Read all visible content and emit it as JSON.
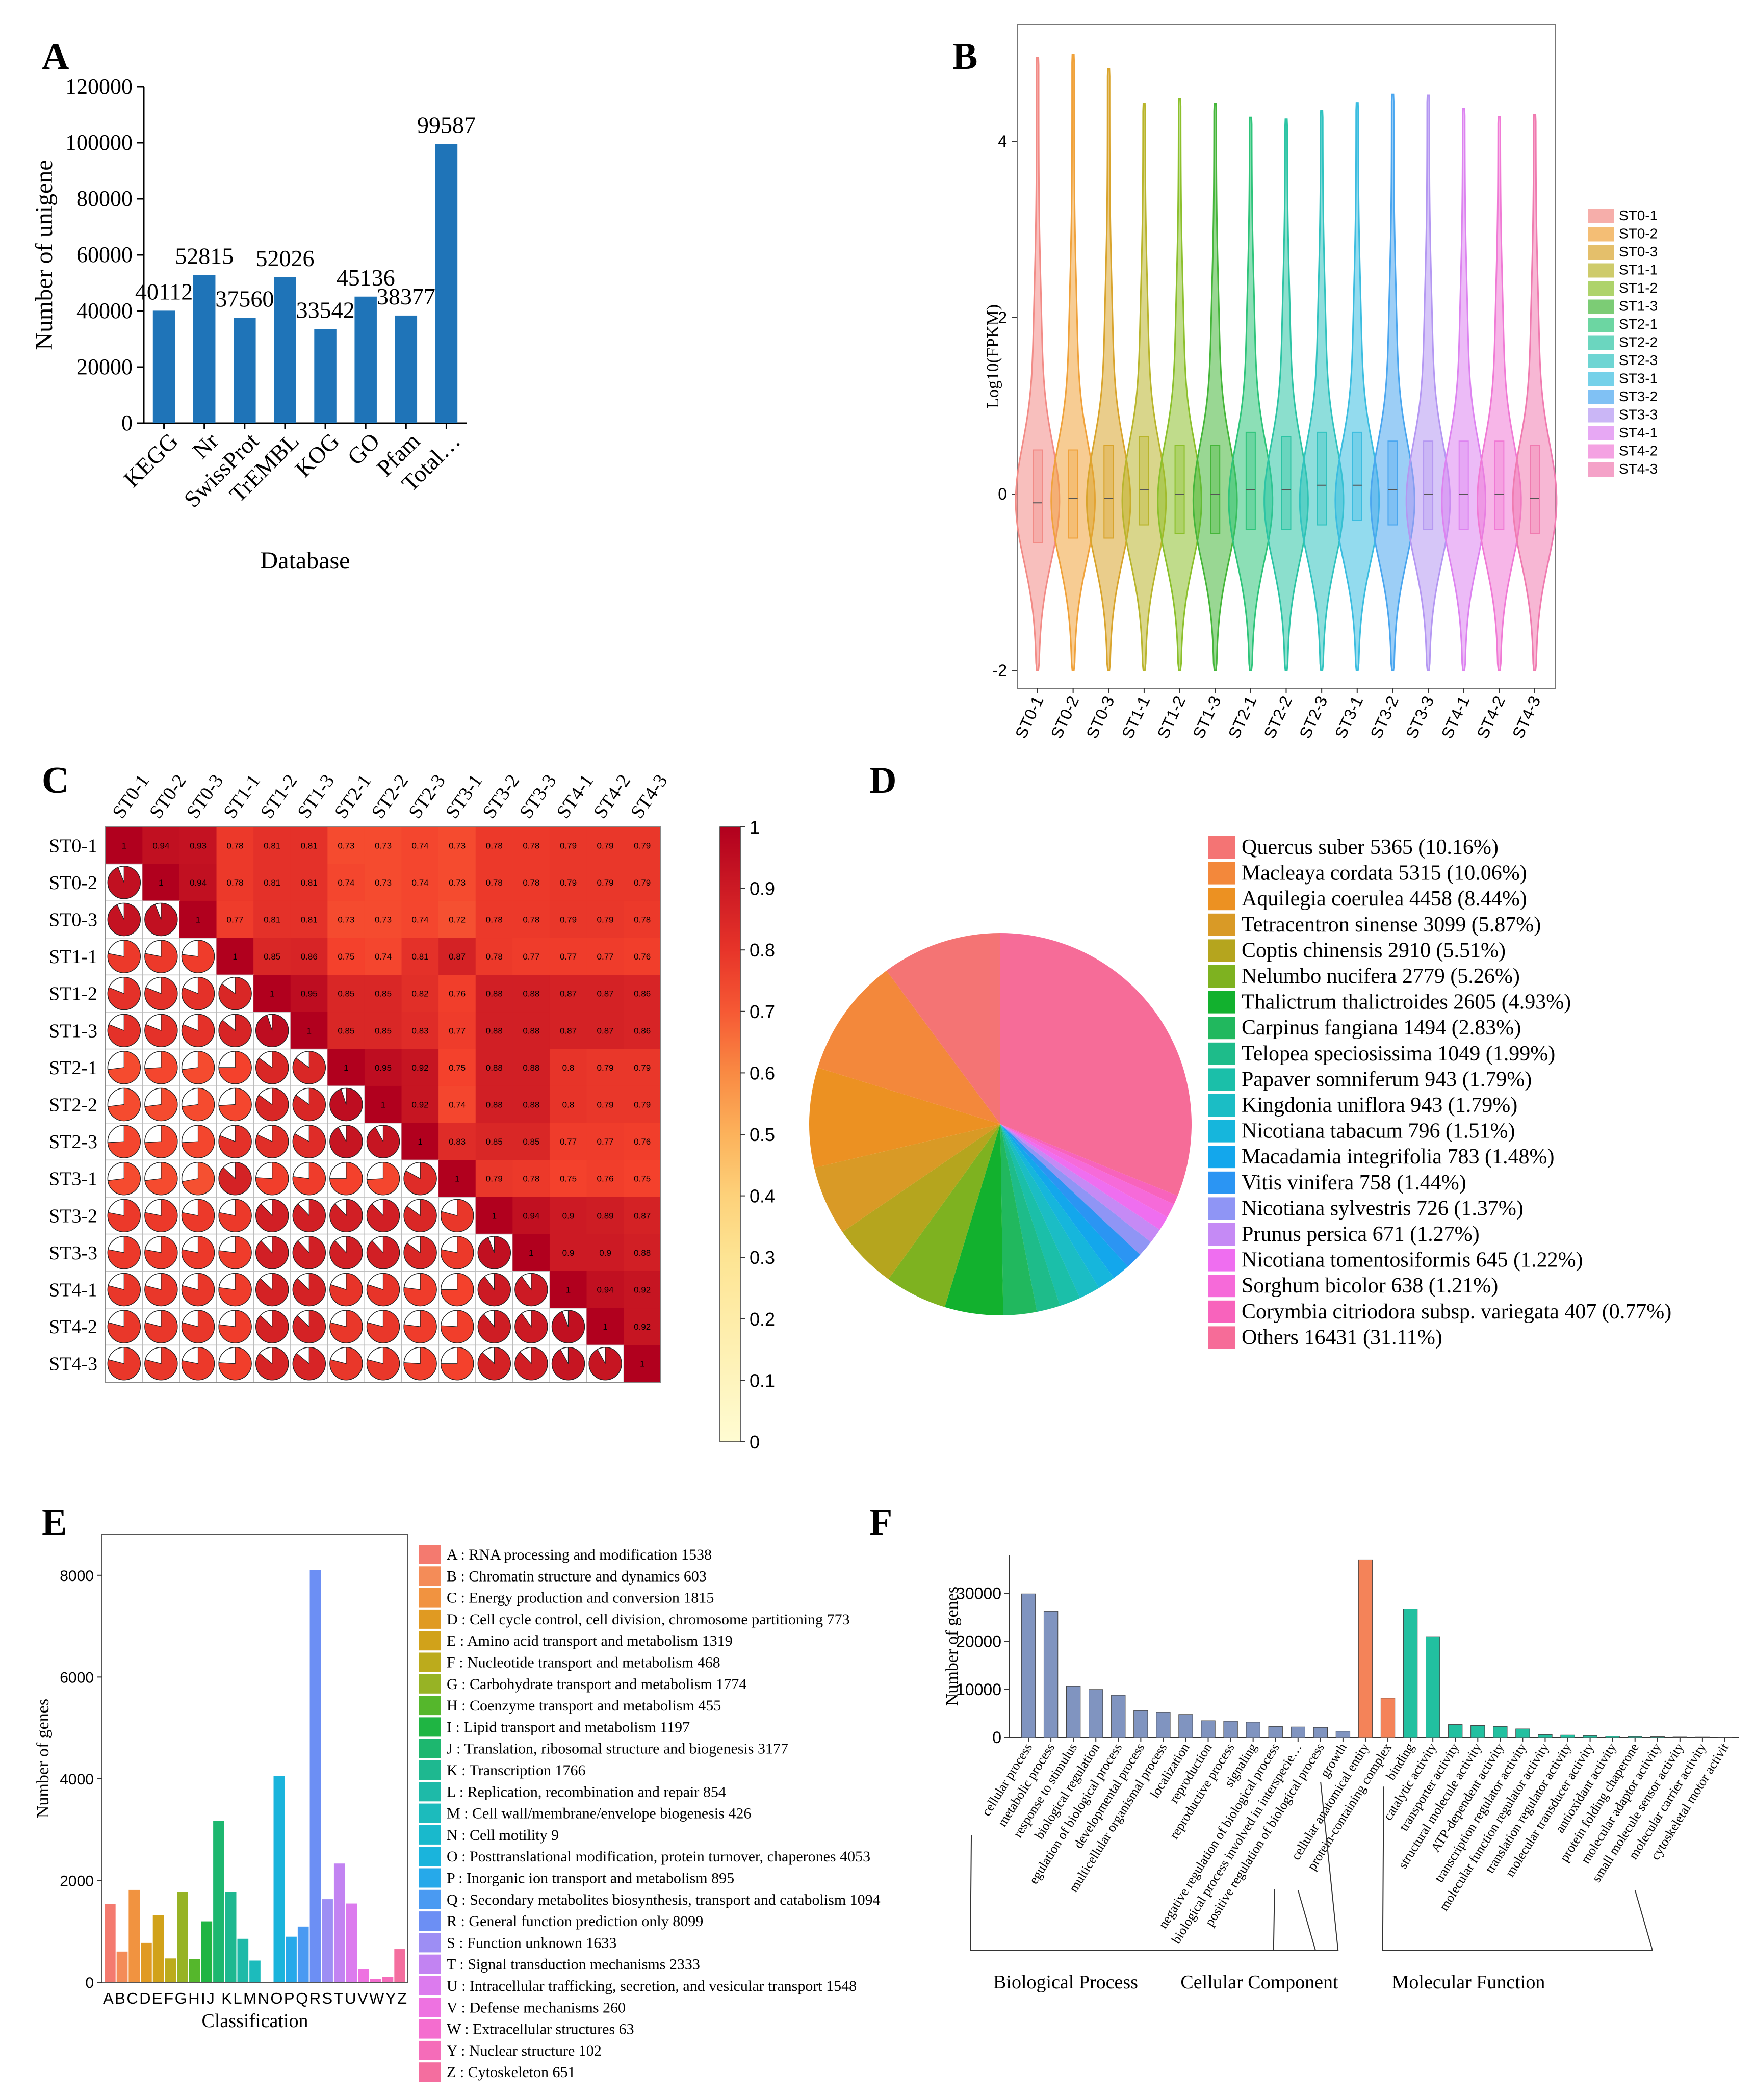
{
  "panels": {
    "A": "A",
    "B": "B",
    "C": "C",
    "D": "D",
    "E": "E",
    "F": "F"
  },
  "chart_data": [
    {
      "panel": "A",
      "type": "bar",
      "title": "",
      "xlabel": "Database",
      "ylabel": "Number of unigene",
      "ylim": [
        0,
        120000
      ],
      "yticks": [
        "0",
        "20000",
        "40000",
        "60000",
        "80000",
        "100000",
        "120000"
      ],
      "categories": [
        "KEGG",
        "Nr",
        "SwissProt",
        "TrEMBL",
        "KOG",
        "GO",
        "Pfam",
        "Total…"
      ],
      "values": [
        40112,
        52815,
        37560,
        52026,
        33542,
        45136,
        38377,
        99587
      ],
      "value_labels": [
        "40112",
        "52815",
        "37560",
        "52026",
        "33542",
        "45136",
        "38377",
        "99587"
      ],
      "color": "#1f74b8",
      "grid": false
    },
    {
      "panel": "B",
      "type": "violin",
      "ylabel": "Log10(FPKM)",
      "ylim": [
        -2,
        5
      ],
      "yticks": [
        "-2",
        "0",
        "2",
        "4"
      ],
      "categories": [
        "ST0-1",
        "ST0-2",
        "ST0-3",
        "ST1-1",
        "ST1-2",
        "ST1-3",
        "ST2-1",
        "ST2-2",
        "ST2-3",
        "ST3-1",
        "ST3-2",
        "ST3-3",
        "ST4-1",
        "ST4-2",
        "ST4-3"
      ],
      "max": [
        4.95,
        4.98,
        4.82,
        4.42,
        4.48,
        4.42,
        4.27,
        4.25,
        4.35,
        4.43,
        4.53,
        4.52,
        4.37,
        4.28,
        4.3
      ],
      "min": [
        -2,
        -2,
        -2,
        -2,
        -2,
        -2,
        -2,
        -2,
        -2,
        -2,
        -2,
        -2,
        -2,
        -2,
        -2
      ],
      "q1": [
        -0.55,
        -0.5,
        -0.5,
        -0.35,
        -0.45,
        -0.45,
        -0.4,
        -0.4,
        -0.35,
        -0.3,
        -0.35,
        -0.4,
        -0.4,
        -0.4,
        -0.45
      ],
      "median": [
        -0.1,
        -0.05,
        -0.05,
        0.05,
        0.0,
        0.0,
        0.05,
        0.05,
        0.1,
        0.1,
        0.05,
        0.0,
        0.0,
        0.0,
        -0.05
      ],
      "q3": [
        0.5,
        0.5,
        0.55,
        0.65,
        0.55,
        0.55,
        0.7,
        0.65,
        0.7,
        0.7,
        0.6,
        0.6,
        0.6,
        0.6,
        0.55
      ],
      "colors": [
        "#f28b86",
        "#f0a23b",
        "#d9a42c",
        "#b9b52c",
        "#8cc02c",
        "#45b63a",
        "#2ec47a",
        "#2cc4a4",
        "#31c3c0",
        "#3bbde0",
        "#4aa6ef",
        "#b497f2",
        "#dd83f0",
        "#f07ad5",
        "#f07bb0"
      ],
      "legend": [
        "ST0-1",
        "ST0-2",
        "ST0-3",
        "ST1-1",
        "ST1-2",
        "ST1-3",
        "ST2-1",
        "ST2-2",
        "ST2-3",
        "ST3-1",
        "ST3-2",
        "ST3-3",
        "ST4-1",
        "ST4-2",
        "ST4-3"
      ],
      "legend_position": "right"
    },
    {
      "panel": "C",
      "type": "heatmap",
      "labels": [
        "ST0-1",
        "ST0-2",
        "ST0-3",
        "ST1-1",
        "ST1-2",
        "ST1-3",
        "ST2-1",
        "ST2-2",
        "ST2-3",
        "ST3-1",
        "ST3-2",
        "ST3-3",
        "ST4-1",
        "ST4-2",
        "ST4-3"
      ],
      "matrix": [
        [
          1,
          0.94,
          0.93,
          0.78,
          0.81,
          0.81,
          0.73,
          0.73,
          0.74,
          0.73,
          0.78,
          0.78,
          0.79,
          0.79,
          0.79
        ],
        [
          0.94,
          1,
          0.94,
          0.78,
          0.81,
          0.81,
          0.74,
          0.73,
          0.74,
          0.73,
          0.78,
          0.78,
          0.79,
          0.79,
          0.79
        ],
        [
          0.93,
          0.94,
          1,
          0.77,
          0.81,
          0.81,
          0.73,
          0.73,
          0.74,
          0.72,
          0.78,
          0.78,
          0.79,
          0.79,
          0.78
        ],
        [
          0.78,
          0.78,
          0.77,
          1,
          0.85,
          0.86,
          0.75,
          0.74,
          0.81,
          0.87,
          0.78,
          0.77,
          0.77,
          0.77,
          0.76
        ],
        [
          0.81,
          0.81,
          0.81,
          0.85,
          1,
          0.95,
          0.85,
          0.85,
          0.82,
          0.76,
          0.88,
          0.88,
          0.87,
          0.87,
          0.86
        ],
        [
          0.81,
          0.81,
          0.81,
          0.86,
          0.95,
          1,
          0.85,
          0.85,
          0.83,
          0.77,
          0.88,
          0.88,
          0.87,
          0.87,
          0.86
        ],
        [
          0.73,
          0.74,
          0.73,
          0.75,
          0.85,
          0.85,
          1,
          0.95,
          0.92,
          0.75,
          0.88,
          0.88,
          0.8,
          0.79,
          0.79
        ],
        [
          0.73,
          0.73,
          0.73,
          0.74,
          0.85,
          0.85,
          0.95,
          1,
          0.92,
          0.74,
          0.88,
          0.88,
          0.8,
          0.79,
          0.79
        ],
        [
          0.74,
          0.74,
          0.74,
          0.81,
          0.82,
          0.83,
          0.92,
          0.92,
          1,
          0.83,
          0.85,
          0.85,
          0.77,
          0.77,
          0.76
        ],
        [
          0.73,
          0.73,
          0.72,
          0.87,
          0.76,
          0.77,
          0.75,
          0.74,
          0.83,
          1,
          0.79,
          0.78,
          0.75,
          0.76,
          0.75
        ],
        [
          0.78,
          0.78,
          0.78,
          0.78,
          0.88,
          0.88,
          0.88,
          0.88,
          0.85,
          0.79,
          1,
          0.94,
          0.9,
          0.89,
          0.87
        ],
        [
          0.78,
          0.78,
          0.78,
          0.77,
          0.88,
          0.88,
          0.88,
          0.88,
          0.85,
          0.78,
          0.94,
          1,
          0.9,
          0.9,
          0.88
        ],
        [
          0.79,
          0.79,
          0.79,
          0.77,
          0.87,
          0.87,
          0.8,
          0.8,
          0.77,
          0.75,
          0.9,
          0.9,
          1,
          0.94,
          0.92
        ],
        [
          0.79,
          0.79,
          0.79,
          0.77,
          0.87,
          0.87,
          0.79,
          0.79,
          0.77,
          0.76,
          0.89,
          0.9,
          0.94,
          1,
          0.92
        ],
        [
          0.79,
          0.79,
          0.78,
          0.76,
          0.86,
          0.86,
          0.79,
          0.79,
          0.76,
          0.75,
          0.87,
          0.88,
          0.92,
          0.92,
          1
        ]
      ],
      "colorbar_ticks": [
        "0",
        "0.1",
        "0.2",
        "0.3",
        "0.4",
        "0.5",
        "0.6",
        "0.7",
        "0.8",
        "0.9",
        "1"
      ],
      "colorbar_range": [
        0,
        1
      ]
    },
    {
      "panel": "D",
      "type": "pie",
      "labels": [
        "Quercus suber 5365 (10.16%)",
        "Macleaya cordata 5315 (10.06%)",
        "Aquilegia coerulea 4458 (8.44%)",
        "Tetracentron sinense 3099 (5.87%)",
        "Coptis chinensis 2910 (5.51%)",
        "Nelumbo nucifera 2779 (5.26%)",
        "Thalictrum thalictroides 2605 (4.93%)",
        "Carpinus fangiana 1494 (2.83%)",
        "Telopea speciosissima 1049 (1.99%)",
        "Papaver somniferum 943 (1.79%)",
        "Kingdonia uniflora 943 (1.79%)",
        "Nicotiana tabacum 796 (1.51%)",
        "Macadamia integrifolia 783 (1.48%)",
        "Vitis vinifera 758 (1.44%)",
        "Nicotiana sylvestris 726 (1.37%)",
        "Prunus persica 671 (1.27%)",
        "Nicotiana tomentosiformis 645 (1.22%)",
        "Sorghum bicolor 638 (1.21%)",
        "Corymbia citriodora subsp. variegata 407 (0.77%)",
        "Others 16431 (31.11%)"
      ],
      "values": [
        5365,
        5315,
        4458,
        3099,
        2910,
        2779,
        2605,
        1494,
        1049,
        943,
        943,
        796,
        783,
        758,
        726,
        671,
        645,
        638,
        407,
        16431
      ],
      "colors": [
        "#f47474",
        "#f3883b",
        "#ec9122",
        "#d99a26",
        "#b5a51e",
        "#7eb220",
        "#12b12e",
        "#21b85e",
        "#1ebc8a",
        "#1bbfa9",
        "#1bbdc5",
        "#16b6dc",
        "#13a7ec",
        "#2b95f3",
        "#8f95f5",
        "#c58af5",
        "#ef6ef0",
        "#f66ad9",
        "#f863bc",
        "#f66c98"
      ],
      "legend_position": "right"
    },
    {
      "panel": "E",
      "type": "bar",
      "xlabel": "Classification",
      "ylabel": "Number of genes",
      "ylim": [
        0,
        8800
      ],
      "yticks": [
        "0",
        "2000",
        "4000",
        "6000",
        "8000"
      ],
      "categories": [
        "A",
        "B",
        "C",
        "D",
        "E",
        "F",
        "G",
        "H",
        "I",
        "J",
        "K",
        "L",
        "M",
        "N",
        "O",
        "P",
        "Q",
        "R",
        "S",
        "T",
        "U",
        "V",
        "W",
        "Y",
        "Z"
      ],
      "values": [
        1538,
        603,
        1815,
        773,
        1319,
        468,
        1774,
        455,
        1197,
        3177,
        1766,
        854,
        426,
        9,
        4053,
        895,
        1094,
        8099,
        1633,
        2333,
        1548,
        260,
        63,
        102,
        651
      ],
      "colors": [
        "#f47a6f",
        "#f48c58",
        "#f19340",
        "#e09a22",
        "#d1a21a",
        "#bcab1c",
        "#97b325",
        "#55b72c",
        "#1fb543",
        "#1db76f",
        "#1eb890",
        "#1ebaa8",
        "#1cbbbc",
        "#19b9cc",
        "#1ab4dc",
        "#26a9ea",
        "#4a9af2",
        "#6c8ff4",
        "#9d8ef4",
        "#c283f2",
        "#dc7bee",
        "#ee72e1",
        "#f46dcf",
        "#f56cb9",
        "#f46e9f"
      ],
      "legend": [
        "A : RNA processing and modification 1538",
        "B : Chromatin structure and dynamics 603",
        "C : Energy production and conversion 1815",
        "D : Cell cycle control, cell division, chromosome partitioning 773",
        "E : Amino acid transport and metabolism 1319",
        "F : Nucleotide transport and metabolism 468",
        "G : Carbohydrate transport and metabolism 1774",
        "H : Coenzyme transport and metabolism 455",
        "I : Lipid transport and metabolism 1197",
        "J : Translation, ribosomal structure and biogenesis 3177",
        "K : Transcription 1766",
        "L : Replication, recombination and repair 854",
        "M : Cell wall/membrane/envelope biogenesis 426",
        "N : Cell motility 9",
        "O : Posttranslational modification, protein turnover, chaperones 4053",
        "P : Inorganic ion transport and metabolism 895",
        "Q : Secondary metabolites biosynthesis, transport and catabolism 1094",
        "R : General function prediction only 8099",
        "S : Function unknown 1633",
        "T : Signal transduction mechanisms 2333",
        "U : Intracellular trafficking, secretion, and vesicular transport 1548",
        "V : Defense mechanisms 260",
        "W : Extracellular structures 63",
        "Y : Nuclear structure 102",
        "Z : Cytoskeleton 651"
      ],
      "xtick_text": "ABCDEFGHIJ KLMNOPQRSTUVWYZ",
      "legend_position": "right"
    },
    {
      "panel": "F",
      "type": "bar",
      "ylabel": "Number of genes",
      "ylim": [
        0,
        38000
      ],
      "yticks": [
        "0",
        "10000",
        "20000",
        "30000"
      ],
      "categories": [
        "cellular process",
        "metabolic process",
        "response to stimulus",
        "biological regulation",
        "egulation of biological process",
        "developmental process",
        "multicellular organismal process",
        "localization",
        "reproduction",
        "reproductive process",
        "signaling",
        "negative regulation of biological process",
        "biological process involved in interspecie…",
        "positive regulation of biological process",
        "growth",
        "cellular anatomical entity",
        "protein-containing complex",
        "binding",
        "catalytic activity",
        "transporter activity",
        "structural molecule activity",
        "ATP-dependent activity",
        "transcription regulator activity",
        "molecular function regulator activity",
        "translation regulator activity",
        "molecular transducer activity",
        "antioxidant activity",
        "protein folding chaperone",
        "molecular adaptor activity",
        "small molecule sensor activity",
        "molecular carrier activity",
        "cytoskeletal motor activit"
      ],
      "values": [
        29900,
        26300,
        10700,
        10000,
        8800,
        5600,
        5300,
        4800,
        3500,
        3400,
        3200,
        2300,
        2200,
        2100,
        1300,
        37000,
        8200,
        26800,
        21000,
        2700,
        2500,
        2300,
        1800,
        600,
        500,
        400,
        250,
        200,
        150,
        100,
        80,
        50
      ],
      "groups": [
        {
          "name": "Biological Process",
          "count": 15,
          "color": "#8094c0"
        },
        {
          "name": "Cellular Component",
          "count": 2,
          "color": "#f48359"
        },
        {
          "name": "Molecular Function",
          "count": 15,
          "color": "#22c0a0"
        }
      ]
    }
  ]
}
